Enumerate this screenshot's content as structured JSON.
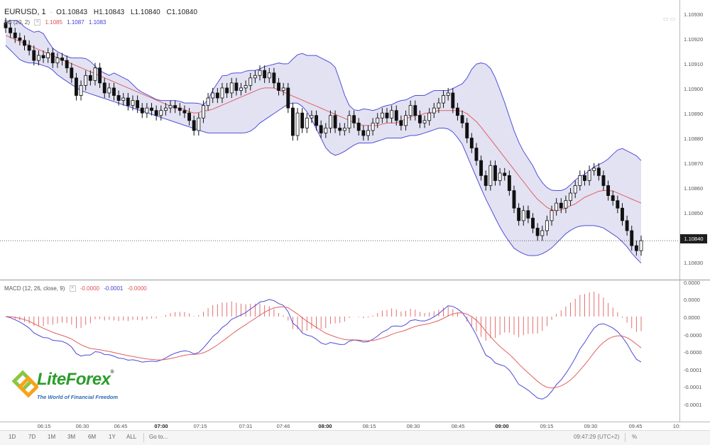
{
  "header": {
    "symbol": "EURUSD, 1",
    "open": "O1.10843",
    "high": "H1.10843",
    "low": "L1.10840",
    "close": "C1.10840"
  },
  "bb_legend": {
    "label": "BB (20, 2)",
    "middle": "1.1085",
    "upper": "1.1087",
    "lower": "1.1083",
    "colors": {
      "middle": "#e05050",
      "upper": "#4040d0",
      "lower": "#4040d0"
    }
  },
  "macd_legend": {
    "label": "MACD (12, 26, close, 9)",
    "histogram": "-0.0000",
    "macd": "-0.0001",
    "signal": "-0.0000",
    "colors": {
      "histogram": "#e05050",
      "macd": "#4040d0",
      "signal": "#e05050"
    }
  },
  "price_axis": [
    "1.10930",
    "1.10920",
    "1.10910",
    "1.10900",
    "1.10890",
    "1.10880",
    "1.10870",
    "1.10860",
    "1.10850",
    "1.10830"
  ],
  "current_price": "1.10840",
  "macd_axis": [
    "0.0000",
    "0.0000",
    "0.0000",
    "-0.0000",
    "-0.0000",
    "-0.0001",
    "-0.0001",
    "-0.0001"
  ],
  "time_axis": [
    {
      "label": "06:15",
      "bold": false
    },
    {
      "label": "06:30",
      "bold": false
    },
    {
      "label": "06:45",
      "bold": false
    },
    {
      "label": "07:00",
      "bold": true
    },
    {
      "label": "07:15",
      "bold": false
    },
    {
      "label": "07:31",
      "bold": false
    },
    {
      "label": "07:46",
      "bold": false
    },
    {
      "label": "08:00",
      "bold": true
    },
    {
      "label": "08:15",
      "bold": false
    },
    {
      "label": "08:30",
      "bold": false
    },
    {
      "label": "08:45",
      "bold": false
    },
    {
      "label": "09:00",
      "bold": true
    },
    {
      "label": "09:15",
      "bold": false
    },
    {
      "label": "09:30",
      "bold": false
    },
    {
      "label": "09:45",
      "bold": false
    },
    {
      "label": "10:",
      "bold": false
    }
  ],
  "bottom_bar": {
    "ranges": [
      "1D",
      "7D",
      "1M",
      "3M",
      "6M",
      "1Y",
      "ALL"
    ],
    "goto": "Go to...",
    "clock": "09:47:29 (UTC+2)",
    "percent": "%"
  },
  "logo": {
    "brand": "LiteForex",
    "reg": "®",
    "tagline": "The World of Financial Freedom"
  },
  "chart_data": {
    "type": "candlestick",
    "symbol": "EURUSD",
    "interval": "1",
    "ylim": [
      1.10825,
      1.10935
    ],
    "closes": [
      1.10925,
      1.10923,
      1.10921,
      1.1092,
      1.10918,
      1.10916,
      1.10912,
      1.10914,
      1.10913,
      1.10915,
      1.10911,
      1.10913,
      1.10912,
      1.10909,
      1.10905,
      1.10898,
      1.10902,
      1.10906,
      1.10904,
      1.10909,
      1.10903,
      1.10899,
      1.10901,
      1.10898,
      1.10896,
      1.10897,
      1.10894,
      1.10896,
      1.10893,
      1.10891,
      1.10893,
      1.10892,
      1.1089,
      1.10892,
      1.10893,
      1.10894,
      1.10893,
      1.10892,
      1.10891,
      1.10888,
      1.10884,
      1.10889,
      1.10894,
      1.10897,
      1.10899,
      1.10897,
      1.10901,
      1.10899,
      1.10903,
      1.109,
      1.10901,
      1.10902,
      1.10905,
      1.10906,
      1.10908,
      1.10905,
      1.10907,
      1.10903,
      1.109,
      1.10901,
      1.10893,
      1.10882,
      1.10891,
      1.10885,
      1.10889,
      1.1089,
      1.10886,
      1.10883,
      1.10885,
      1.1089,
      1.10885,
      1.10884,
      1.10885,
      1.1089,
      1.10887,
      1.10884,
      1.10882,
      1.10884,
      1.10887,
      1.10889,
      1.10891,
      1.10889,
      1.10892,
      1.10888,
      1.10886,
      1.1089,
      1.10894,
      1.1089,
      1.10887,
      1.10888,
      1.10891,
      1.10893,
      1.10895,
      1.10898,
      1.10899,
      1.10893,
      1.1089,
      1.10887,
      1.10881,
      1.10877,
      1.10872,
      1.10866,
      1.10862,
      1.1087,
      1.10864,
      1.10867,
      1.10866,
      1.1086,
      1.10853,
      1.10848,
      1.10852,
      1.10849,
      1.10845,
      1.10842,
      1.10844,
      1.10848,
      1.10852,
      1.10855,
      1.10853,
      1.10856,
      1.10859,
      1.10862,
      1.10866,
      1.10864,
      1.10868,
      1.10869,
      1.10866,
      1.10862,
      1.10858,
      1.10856,
      1.10853,
      1.10848,
      1.10844,
      1.10838,
      1.10836,
      1.1084
    ],
    "bb_upper": [
      1.10927,
      1.10928,
      1.10928,
      1.10927,
      1.10925,
      1.10924,
      1.10923,
      1.10924,
      1.10922,
      1.10918,
      1.10916,
      1.10915,
      1.10914,
      1.10913,
      1.10913,
      1.10913,
      1.10913,
      1.10912,
      1.1091,
      1.10908,
      1.10907,
      1.10906,
      1.10907,
      1.10906,
      1.10905,
      1.10904,
      1.10902,
      1.109,
      1.10899,
      1.10898,
      1.10897,
      1.10896,
      1.10896,
      1.10896,
      1.10896,
      1.10896,
      1.10895,
      1.10895,
      1.10895,
      1.10895,
      1.10894,
      1.10896,
      1.109,
      1.10903,
      1.10906,
      1.10906,
      1.10907,
      1.10907,
      1.10907,
      1.10908,
      1.10908,
      1.10908,
      1.10909,
      1.1091,
      1.1091,
      1.10911,
      1.10911,
      1.1091,
      1.10912,
      1.10914,
      1.10915,
      1.10914,
      1.10914,
      1.10914,
      1.10913,
      1.10912,
      1.10911,
      1.10909,
      1.10903,
      1.10897,
      1.10893,
      1.10892,
      1.10892,
      1.10893,
      1.10892,
      1.10892,
      1.10893,
      1.10894,
      1.10894,
      1.10895,
      1.10896,
      1.10896,
      1.10897,
      1.10898,
      1.10898,
      1.10898,
      1.10899,
      1.109,
      1.109,
      1.109,
      1.109,
      1.10901,
      1.10902,
      1.10903,
      1.10906,
      1.1091,
      1.10911,
      1.10911,
      1.1091,
      1.10907,
      1.10902,
      1.10897,
      1.10891,
      1.10885,
      1.1088,
      1.10876,
      1.10873,
      1.1087,
      1.10866,
      1.10863,
      1.10861,
      1.1086,
      1.1086,
      1.1086,
      1.10861,
      1.10863,
      1.10865,
      1.10866,
      1.10867,
      1.10869,
      1.1087,
      1.10871,
      1.10872,
      1.10874,
      1.10876,
      1.10877,
      1.10876,
      1.10875,
      1.10874,
      1.10872
    ],
    "bb_middle": [
      1.10922,
      1.10921,
      1.1092,
      1.10919,
      1.10918,
      1.10917,
      1.10916,
      1.10915,
      1.10914,
      1.10913,
      1.10912,
      1.10911,
      1.1091,
      1.10909,
      1.10908,
      1.10907,
      1.10906,
      1.10905,
      1.10904,
      1.10903,
      1.10902,
      1.10901,
      1.109,
      1.10899,
      1.10898,
      1.10897,
      1.10896,
      1.10895,
      1.10894,
      1.10893,
      1.10893,
      1.10892,
      1.10891,
      1.10891,
      1.10892,
      1.10892,
      1.10893,
      1.10894,
      1.10895,
      1.10896,
      1.10897,
      1.10898,
      1.10899,
      1.109,
      1.10901,
      1.10901,
      1.10901,
      1.109,
      1.10899,
      1.10898,
      1.10897,
      1.10896,
      1.10895,
      1.10894,
      1.10893,
      1.10892,
      1.10891,
      1.1089,
      1.10889,
      1.10888,
      1.10887,
      1.10886,
      1.10886,
      1.10886,
      1.10886,
      1.10887,
      1.10887,
      1.10887,
      1.10888,
      1.10889,
      1.1089,
      1.1089,
      1.10891,
      1.10891,
      1.10892,
      1.10892,
      1.10892,
      1.10892,
      1.10892,
      1.10891,
      1.10889,
      1.10887,
      1.10884,
      1.10881,
      1.10878,
      1.10875,
      1.10872,
      1.10869,
      1.10866,
      1.10863,
      1.1086,
      1.10857,
      1.10855,
      1.10853,
      1.10852,
      1.10852,
      1.10853,
      1.10854,
      1.10855,
      1.10857,
      1.10858,
      1.10859,
      1.1086,
      1.1086,
      1.1086,
      1.10859,
      1.10858,
      1.10857,
      1.10856,
      1.10855
    ],
    "bb_lower": [
      1.10918,
      1.10915,
      1.10912,
      1.10911,
      1.10911,
      1.1091,
      1.10909,
      1.10906,
      1.10904,
      1.10902,
      1.109,
      1.10899,
      1.10898,
      1.10897,
      1.10896,
      1.10895,
      1.10894,
      1.10893,
      1.10892,
      1.10891,
      1.1089,
      1.10889,
      1.10888,
      1.10887,
      1.10886,
      1.10885,
      1.10884,
      1.10883,
      1.10883,
      1.10883,
      1.10883,
      1.10883,
      1.10883,
      1.10884,
      1.10887,
      1.10889,
      1.10891,
      1.10893,
      1.10895,
      1.10895,
      1.10893,
      1.10888,
      1.10882,
      1.10876,
      1.10874,
      1.10875,
      1.10877,
      1.10879,
      1.10879,
      1.10879,
      1.1088,
      1.10881,
      1.10881,
      1.10881,
      1.10882,
      1.10882,
      1.10883,
      1.10884,
      1.10885,
      1.10885,
      1.10883,
      1.10879,
      1.10872,
      1.10865,
      1.10858,
      1.10852,
      1.10846,
      1.10841,
      1.10837,
      1.10835,
      1.10834,
      1.10834,
      1.10835,
      1.10837,
      1.1084,
      1.10843,
      1.10845,
      1.10846,
      1.10846,
      1.10846,
      1.10845,
      1.10843,
      1.10841,
      1.10838,
      1.10834,
      1.10831
    ]
  }
}
